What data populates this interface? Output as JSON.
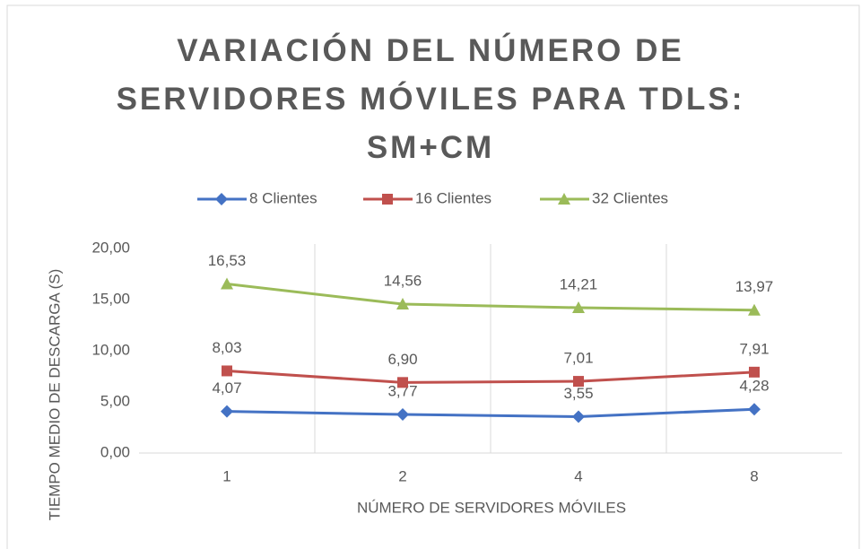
{
  "chart_data": {
    "type": "line",
    "title": "VARIACIÓN DEL NÚMERO DE SERVIDORES MÓVILES PARA TDLS: SM+CM",
    "x_label": "NÚMERO DE SERVIDORES MÓVILES",
    "y_label": "TIEMPO MEDIO DE DESCARGA (S)",
    "categories": [
      "1",
      "2",
      "4",
      "8"
    ],
    "series": [
      {
        "name": "8 Clientes",
        "color": "#4472c4",
        "marker": "diamond",
        "values": [
          4.07,
          3.77,
          3.55,
          4.28
        ],
        "value_labels": [
          "4,07",
          "3,77",
          "3,55",
          "4,28"
        ]
      },
      {
        "name": "16 Clientes",
        "color": "#c0504d",
        "marker": "square",
        "values": [
          8.03,
          6.9,
          7.01,
          7.91
        ],
        "value_labels": [
          "8,03",
          "6,90",
          "7,01",
          "7,91"
        ]
      },
      {
        "name": "32 Clientes",
        "color": "#9bbb59",
        "marker": "triangle",
        "values": [
          16.53,
          14.56,
          14.21,
          13.97
        ],
        "value_labels": [
          "16,53",
          "14,56",
          "14,21",
          "13,97"
        ]
      }
    ],
    "ylim": [
      0,
      20
    ],
    "yticks": [
      {
        "value": 0,
        "label": "0,00"
      },
      {
        "value": 5,
        "label": "5,00"
      },
      {
        "value": 10,
        "label": "10,00"
      },
      {
        "value": 15,
        "label": "15,00"
      },
      {
        "value": 20,
        "label": "20,00"
      }
    ],
    "legend": "top"
  }
}
